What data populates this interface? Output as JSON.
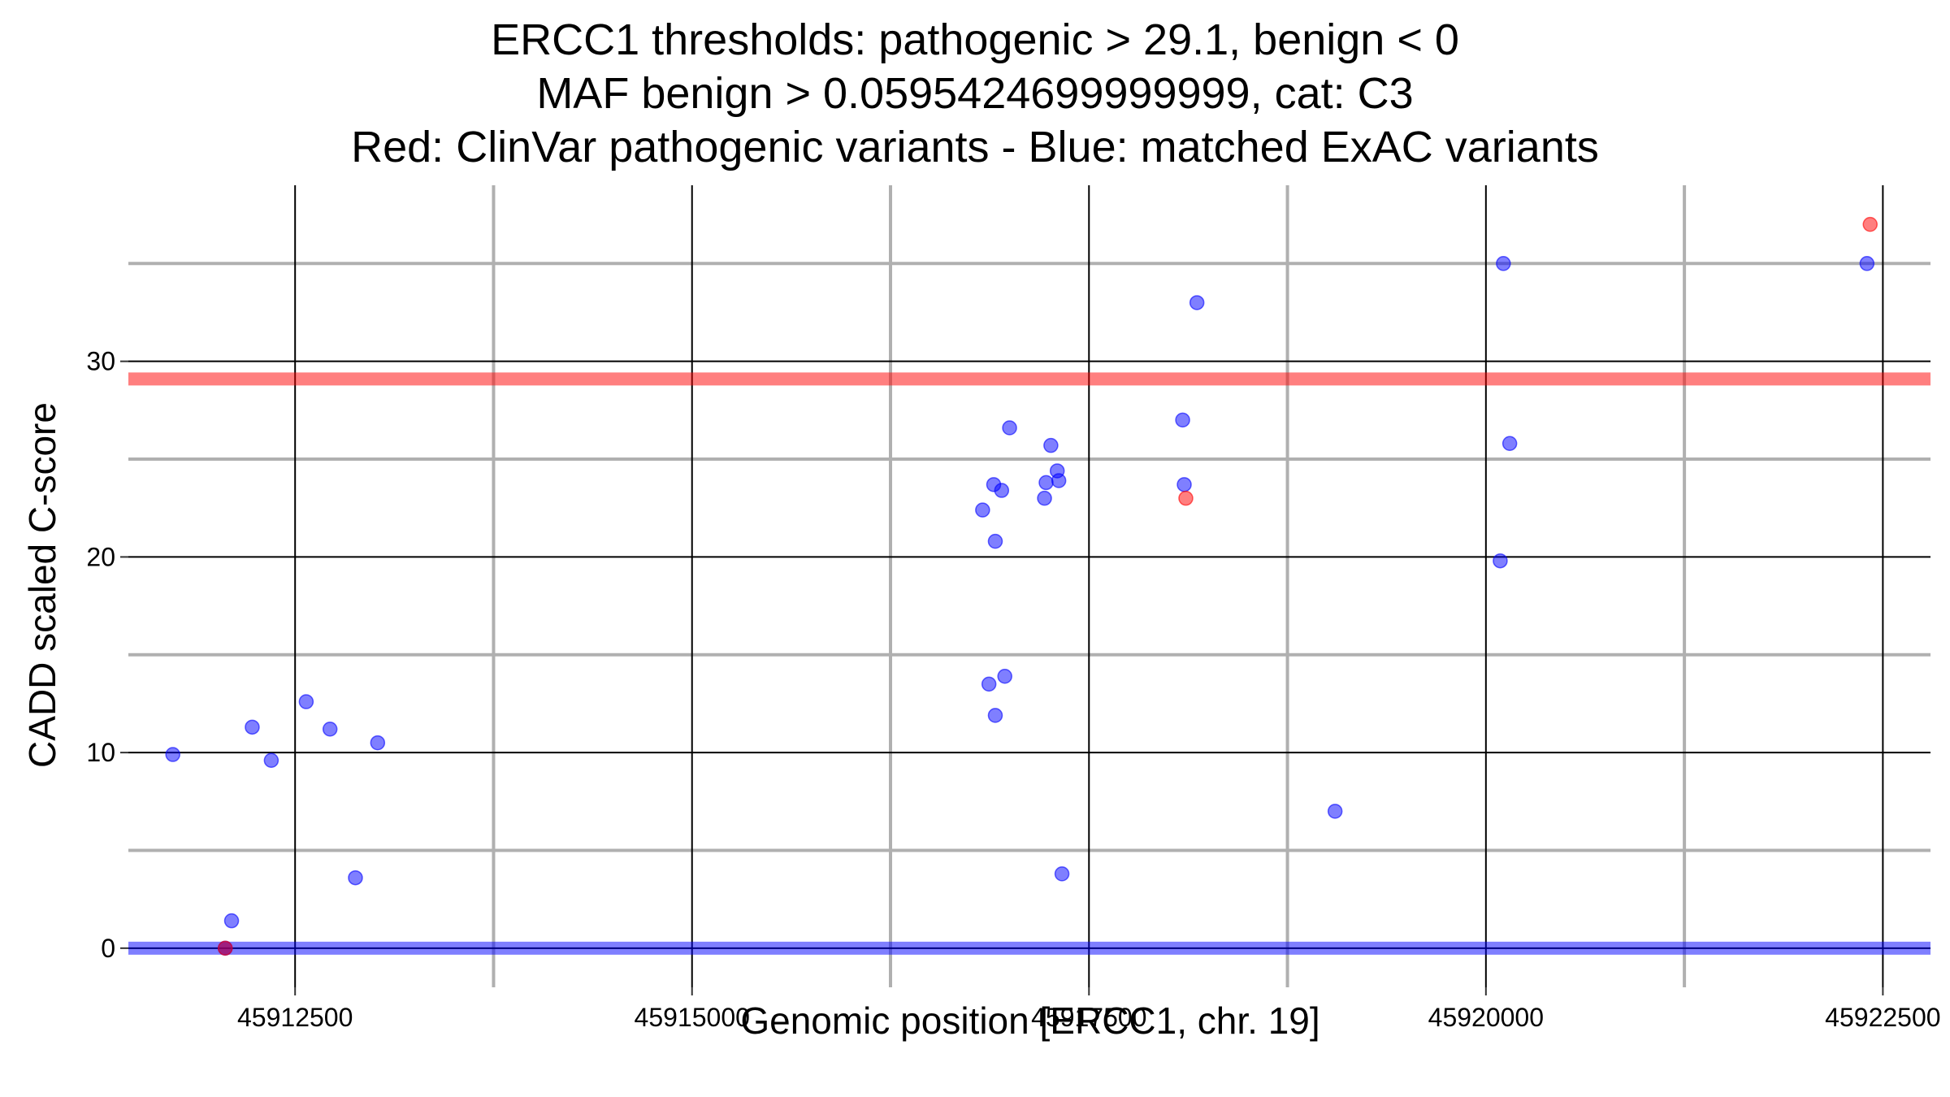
{
  "chart_data": {
    "type": "scatter",
    "title_lines": [
      "ERCC1 thresholds: pathogenic > 29.1, benign < 0",
      "MAF benign > 0.0595424699999999, cat: C3",
      "Red: ClinVar pathogenic variants - Blue: matched ExAC variants"
    ],
    "xlabel": "Genomic position [ERCC1, chr. 19]",
    "ylabel": "CADD scaled C-score",
    "xlim": [
      45911450,
      45922800
    ],
    "ylim": [
      -2,
      39
    ],
    "x_ticks": [
      45912500,
      45915000,
      45917500,
      45920000,
      45922500
    ],
    "y_ticks": [
      0,
      10,
      20,
      30
    ],
    "thresholds": {
      "pathogenic": 29.1,
      "benign": 0
    },
    "colors": {
      "pathogenic": "#ff0000",
      "benign": "#0000ff",
      "matched": "#0000ff",
      "grid_major": "#000000",
      "grid_minor": "#b0b0b0"
    },
    "series": [
      {
        "key": "clinvar",
        "points": [
          {
            "x": 45922420,
            "y": 37.0
          },
          {
            "x": 45918110,
            "y": 23.0
          },
          {
            "x": 45912060,
            "y": 0.0
          }
        ]
      },
      {
        "key": "exac",
        "points": [
          {
            "x": 45911730,
            "y": 9.9
          },
          {
            "x": 45912060,
            "y": 0.0
          },
          {
            "x": 45912100,
            "y": 1.4
          },
          {
            "x": 45912230,
            "y": 11.3
          },
          {
            "x": 45912350,
            "y": 9.6
          },
          {
            "x": 45912570,
            "y": 12.6
          },
          {
            "x": 45912720,
            "y": 11.2
          },
          {
            "x": 45912880,
            "y": 3.6
          },
          {
            "x": 45913020,
            "y": 10.5
          },
          {
            "x": 45916830,
            "y": 22.4
          },
          {
            "x": 45916870,
            "y": 13.5
          },
          {
            "x": 45916900,
            "y": 23.7
          },
          {
            "x": 45916910,
            "y": 20.8
          },
          {
            "x": 45916910,
            "y": 11.9
          },
          {
            "x": 45916950,
            "y": 23.4
          },
          {
            "x": 45916970,
            "y": 13.9
          },
          {
            "x": 45917000,
            "y": 26.6
          },
          {
            "x": 45917220,
            "y": 23.0
          },
          {
            "x": 45917230,
            "y": 23.8
          },
          {
            "x": 45917260,
            "y": 25.7
          },
          {
            "x": 45917300,
            "y": 24.4
          },
          {
            "x": 45917310,
            "y": 23.9
          },
          {
            "x": 45917330,
            "y": 3.8
          },
          {
            "x": 45918090,
            "y": 27.0
          },
          {
            "x": 45918100,
            "y": 23.7
          },
          {
            "x": 45918180,
            "y": 33.0
          },
          {
            "x": 45919050,
            "y": 7.0
          },
          {
            "x": 45920090,
            "y": 19.8
          },
          {
            "x": 45920110,
            "y": 35.0
          },
          {
            "x": 45920150,
            "y": 25.8
          },
          {
            "x": 45922400,
            "y": 35.0
          }
        ]
      }
    ]
  }
}
